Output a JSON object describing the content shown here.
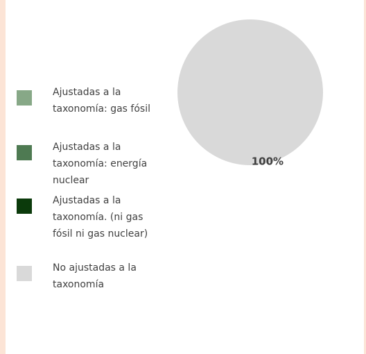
{
  "chart_data": {
    "type": "pie",
    "categories": [
      "Ajustadas a la taxonomía: gas fósil",
      "Ajustadas a la taxonomía: energía nuclear",
      "Ajustadas a la taxonomía. (ni gas fósil ni gas nuclear)",
      "No ajustadas a la taxonomía"
    ],
    "values": [
      0,
      0,
      0,
      100
    ],
    "value_labels": [
      null,
      null,
      null,
      "100%"
    ],
    "colors": [
      "#87a887",
      "#4e7a52",
      "#0b3a0b",
      "#d9d9d9"
    ],
    "legend": "left"
  }
}
